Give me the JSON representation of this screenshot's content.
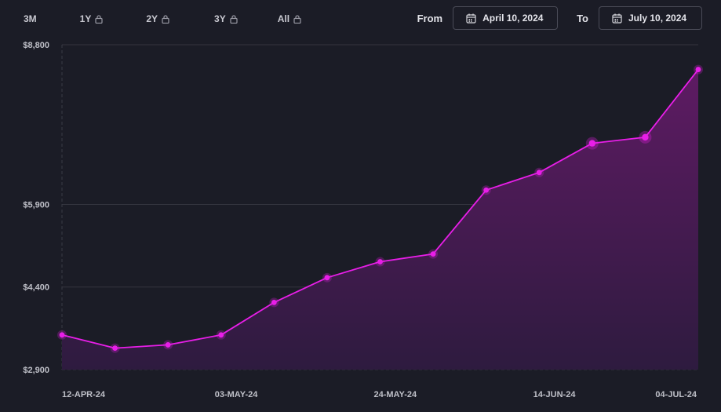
{
  "range_tabs": [
    {
      "label": "3M",
      "locked": false
    },
    {
      "label": "1Y",
      "locked": true
    },
    {
      "label": "2Y",
      "locked": true
    },
    {
      "label": "3Y",
      "locked": true
    },
    {
      "label": "All",
      "locked": true
    }
  ],
  "date_range": {
    "from_label": "From",
    "from_value": "April 10, 2024",
    "to_label": "To",
    "to_value": "July 10, 2024"
  },
  "colors": {
    "line": "#e81ee8",
    "area_top": "#5e1b63",
    "area_bottom": "#2e1b3f",
    "grid": "#34353f",
    "background": "#1b1c26"
  },
  "chart_data": {
    "type": "area",
    "ylim": [
      2900,
      8800
    ],
    "y_ticks": [
      {
        "value": 8800,
        "label": "$8,800"
      },
      {
        "value": 5900,
        "label": "$5,900"
      },
      {
        "value": 4400,
        "label": "$4,400"
      },
      {
        "value": 2900,
        "label": "$2,900"
      }
    ],
    "x_tick_labels": [
      "12-APR-24",
      "03-MAY-24",
      "24-MAY-24",
      "14-JUN-24",
      "04-JUL-24"
    ],
    "points": [
      {
        "x": "2024-04-10",
        "y": 3530
      },
      {
        "x": "2024-04-17",
        "y": 3290
      },
      {
        "x": "2024-04-24",
        "y": 3350
      },
      {
        "x": "2024-05-01",
        "y": 3530
      },
      {
        "x": "2024-05-08",
        "y": 4120
      },
      {
        "x": "2024-05-15",
        "y": 4570
      },
      {
        "x": "2024-05-22",
        "y": 4860
      },
      {
        "x": "2024-05-29",
        "y": 5000
      },
      {
        "x": "2024-06-05",
        "y": 6160
      },
      {
        "x": "2024-06-12",
        "y": 6480
      },
      {
        "x": "2024-06-19",
        "y": 7010
      },
      {
        "x": "2024-06-26",
        "y": 7120
      },
      {
        "x": "2024-07-03",
        "y": 8350
      }
    ],
    "highlighted_points": [
      10,
      11
    ]
  }
}
